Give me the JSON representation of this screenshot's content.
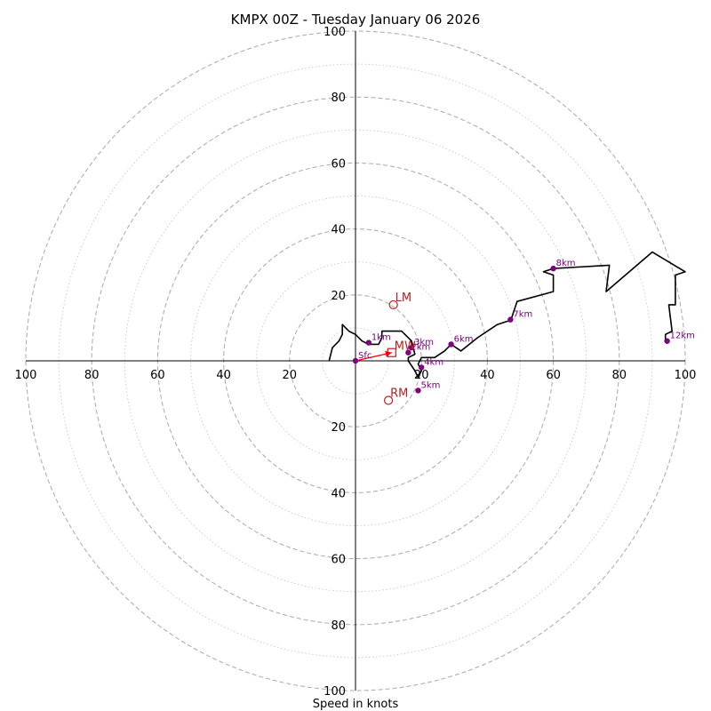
{
  "chart_data": {
    "type": "hodograph",
    "title": "KMPX 00Z - Tuesday January 06 2026",
    "xlabel": "Speed in knots",
    "axis_range": [
      -100,
      100
    ],
    "ring_spacing": 10,
    "major_rings": [
      20,
      40,
      60,
      80,
      100
    ],
    "tick_labels": {
      "left": [
        "100",
        "80",
        "60",
        "40",
        "20"
      ],
      "right": [
        "20",
        "40",
        "60",
        "80",
        "100"
      ],
      "top": [
        "100",
        "80",
        "60",
        "40",
        "20"
      ],
      "bottom": [
        "20",
        "40",
        "60",
        "80",
        "100"
      ],
      "left_values": [
        -100,
        -80,
        -60,
        -40,
        -20
      ],
      "right_values": [
        20,
        40,
        60,
        80,
        100
      ],
      "top_values": [
        100,
        80,
        60,
        40,
        20
      ],
      "bottom_values": [
        -20,
        -40,
        -60,
        -80,
        -100
      ]
    },
    "hodograph_trace": [
      [
        -8,
        0
      ],
      [
        -7,
        4
      ],
      [
        -5,
        6
      ],
      [
        -4,
        8
      ],
      [
        -4,
        11
      ],
      [
        -2,
        9
      ],
      [
        0,
        8
      ],
      [
        2,
        6
      ],
      [
        4,
        5
      ],
      [
        7,
        5
      ],
      [
        8,
        7
      ],
      [
        8,
        9
      ],
      [
        14,
        9
      ],
      [
        17,
        6
      ],
      [
        18,
        2
      ],
      [
        16,
        1
      ],
      [
        16,
        0
      ],
      [
        18,
        -3
      ],
      [
        19,
        -5
      ],
      [
        20,
        -3
      ],
      [
        19,
        -1
      ],
      [
        20,
        1
      ],
      [
        24,
        1
      ],
      [
        27,
        3
      ],
      [
        29,
        5
      ],
      [
        32,
        3
      ],
      [
        37,
        7
      ],
      [
        43,
        11
      ],
      [
        46,
        12
      ],
      [
        47,
        12
      ],
      [
        49,
        18
      ],
      [
        60,
        21
      ],
      [
        60,
        26
      ],
      [
        57,
        27
      ],
      [
        60,
        28
      ],
      [
        77,
        29
      ],
      [
        76,
        21
      ],
      [
        90,
        33
      ],
      [
        100,
        27
      ],
      [
        97,
        26
      ],
      [
        97,
        17
      ],
      [
        95,
        17
      ],
      [
        96,
        9
      ],
      [
        94,
        8
      ],
      [
        94,
        6
      ]
    ],
    "height_markers": [
      {
        "label": "Sfc",
        "u": 0,
        "v": 0
      },
      {
        "label": "1km",
        "u": 4,
        "v": 5.5
      },
      {
        "label": "2km",
        "u": 16,
        "v": 2.5
      },
      {
        "label": "3km",
        "u": 17,
        "v": 4
      },
      {
        "label": "4km",
        "u": 20,
        "v": -2
      },
      {
        "label": "5km",
        "u": 19,
        "v": -9
      },
      {
        "label": "6km",
        "u": 29,
        "v": 5
      },
      {
        "label": "7km",
        "u": 47,
        "v": 12.5
      },
      {
        "label": "8km",
        "u": 60,
        "v": 28
      },
      {
        "label": "12km",
        "u": 94.5,
        "v": 6
      }
    ],
    "storm_motion": {
      "lm": {
        "label": "LM",
        "u": 11.5,
        "v": 17
      },
      "rm": {
        "label": "RM",
        "u": 10,
        "v": -12
      },
      "mw": {
        "label": "MW",
        "u": 11,
        "v": 2.5
      }
    },
    "shear_vector": {
      "from": [
        0,
        0
      ],
      "to": [
        11,
        2.5
      ]
    },
    "colors": {
      "trace": "#000000",
      "marker": "#800080",
      "storm_motion": "#b22222",
      "shear_arrow": "#ff0000",
      "major_grid": "#b0b0b0",
      "minor_grid": "#c8c8c8",
      "axes": "#000000"
    }
  }
}
